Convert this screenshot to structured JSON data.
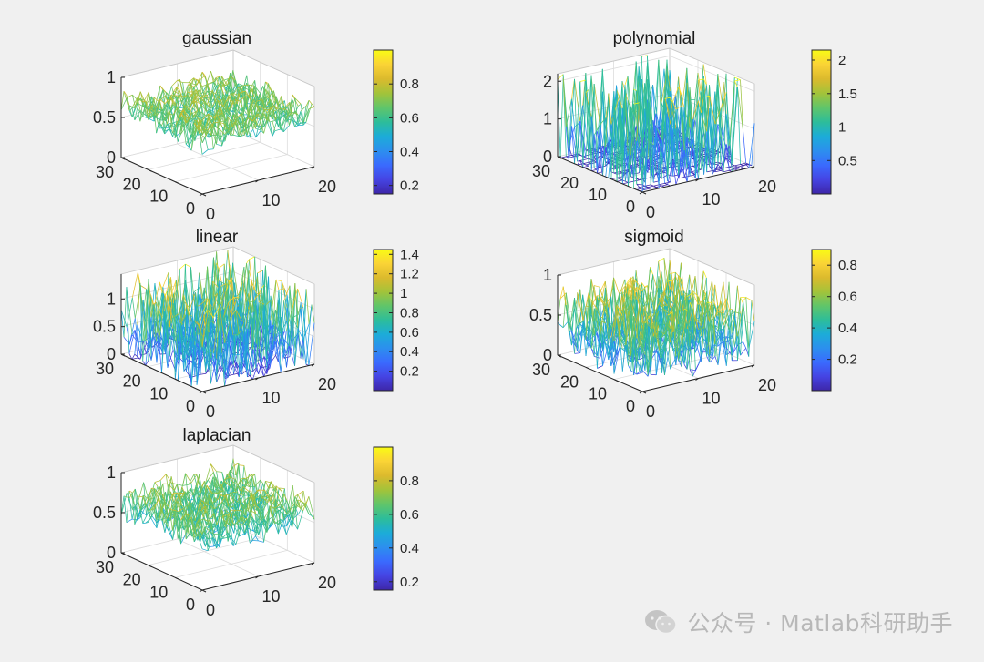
{
  "watermark": {
    "text": "公众号 · Matlab科研助手"
  },
  "colormap": [
    "#3e26a8",
    "#4544e3",
    "#3a6afe",
    "#2c8fee",
    "#1cacd8",
    "#2dbd9a",
    "#60c56a",
    "#a3c33a",
    "#dbba2d",
    "#fad336",
    "#f9fb15"
  ],
  "chart_data": [
    {
      "type": "surface-mesh",
      "title": "gaussian",
      "xticks": [
        "0",
        "10",
        "20"
      ],
      "yticks": [
        "0",
        "10",
        "20",
        "30"
      ],
      "zticks": [
        "0",
        "0.5",
        "1"
      ],
      "xlim": [
        0,
        20
      ],
      "ylim": [
        0,
        30
      ],
      "zlim": [
        0,
        1
      ],
      "data_range": [
        0.15,
        1.0
      ],
      "colorbar": {
        "range": [
          0.15,
          1.0
        ],
        "ticks": [
          0.2,
          0.4,
          0.6,
          0.8
        ],
        "labels": [
          "0.2",
          "0.4",
          "0.6",
          "0.8"
        ]
      }
    },
    {
      "type": "surface-mesh",
      "title": "polynomial",
      "xticks": [
        "0",
        "10",
        "20"
      ],
      "yticks": [
        "0",
        "10",
        "20",
        "30"
      ],
      "zticks": [
        "0",
        "1",
        "2"
      ],
      "xlim": [
        0,
        20
      ],
      "ylim": [
        0,
        30
      ],
      "zlim": [
        0,
        2.2
      ],
      "data_range": [
        0.0,
        2.15
      ],
      "colorbar": {
        "range": [
          0.0,
          2.15
        ],
        "ticks": [
          0.5,
          1,
          1.5,
          2
        ],
        "labels": [
          "0.5",
          "1",
          "1.5",
          "2"
        ]
      }
    },
    {
      "type": "surface-mesh",
      "title": "linear",
      "xticks": [
        "0",
        "10",
        "20"
      ],
      "yticks": [
        "0",
        "10",
        "20",
        "30"
      ],
      "zticks": [
        "0",
        "0.5",
        "1"
      ],
      "xlim": [
        0,
        20
      ],
      "ylim": [
        0,
        30
      ],
      "zlim": [
        0,
        1.45
      ],
      "data_range": [
        0.0,
        1.45
      ],
      "colorbar": {
        "range": [
          0.0,
          1.45
        ],
        "ticks": [
          0.2,
          0.4,
          0.6,
          0.8,
          1,
          1.2,
          1.4
        ],
        "labels": [
          "0.2",
          "0.4",
          "0.6",
          "0.8",
          "1",
          "1.2",
          "1.4"
        ]
      }
    },
    {
      "type": "surface-mesh",
      "title": "sigmoid",
      "xticks": [
        "0",
        "10",
        "20"
      ],
      "yticks": [
        "0",
        "10",
        "20",
        "30"
      ],
      "zticks": [
        "0",
        "0.5",
        "1"
      ],
      "xlim": [
        0,
        20
      ],
      "ylim": [
        0,
        30
      ],
      "zlim": [
        0,
        1
      ],
      "data_range": [
        0.0,
        0.9
      ],
      "colorbar": {
        "range": [
          0.0,
          0.9
        ],
        "ticks": [
          0.2,
          0.4,
          0.6,
          0.8
        ],
        "labels": [
          "0.2",
          "0.4",
          "0.6",
          "0.8"
        ]
      }
    },
    {
      "type": "surface-mesh",
      "title": "laplacian",
      "xticks": [
        "0",
        "10",
        "20"
      ],
      "yticks": [
        "0",
        "10",
        "20",
        "30"
      ],
      "zticks": [
        "0",
        "0.5",
        "1"
      ],
      "xlim": [
        0,
        20
      ],
      "ylim": [
        0,
        30
      ],
      "zlim": [
        0,
        1
      ],
      "data_range": [
        0.15,
        1.0
      ],
      "colorbar": {
        "range": [
          0.15,
          1.0
        ],
        "ticks": [
          0.2,
          0.4,
          0.6,
          0.8
        ],
        "labels": [
          "0.2",
          "0.4",
          "0.6",
          "0.8"
        ]
      }
    }
  ]
}
